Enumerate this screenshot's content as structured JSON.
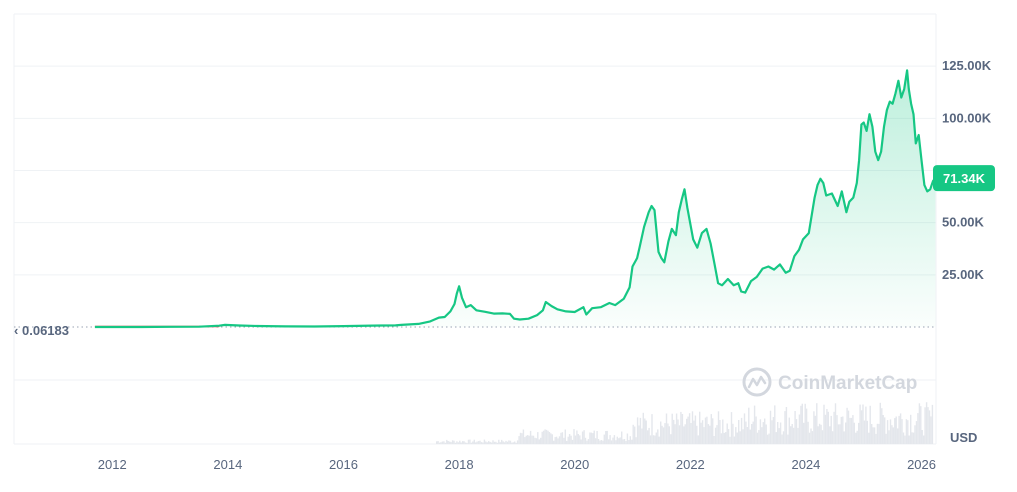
{
  "chart_data": {
    "type": "area",
    "currency_unit": "USD",
    "watermark": "CoinMarketCap",
    "current_value_label": "71.34K",
    "current_value": 71340,
    "baseline_label": "0.06183",
    "baseline_value": 0.06183,
    "y_ticks": [
      {
        "value": 25000,
        "label": "25.00K"
      },
      {
        "value": 50000,
        "label": "50.00K"
      },
      {
        "value": 100000,
        "label": "100.00K"
      },
      {
        "value": 125000,
        "label": "125.00K"
      }
    ],
    "x_ticks": [
      {
        "value": 2012,
        "label": "2012"
      },
      {
        "value": 2014,
        "label": "2014"
      },
      {
        "value": 2016,
        "label": "2016"
      },
      {
        "value": 2018,
        "label": "2018"
      },
      {
        "value": 2020,
        "label": "2020"
      },
      {
        "value": 2022,
        "label": "2022"
      },
      {
        "value": 2024,
        "label": "2024"
      },
      {
        "value": 2026,
        "label": "2026"
      }
    ],
    "xlim": [
      2010.3,
      2026.25
    ],
    "ylim": [
      0,
      150000
    ],
    "grid": true,
    "colors": {
      "line": "#16c784",
      "area": "#16c784",
      "below_baseline": "#ea3943",
      "badge": "#16c784"
    },
    "series": [
      {
        "x": [
          2011.7,
          2012.5,
          2013.0,
          2013.5,
          2013.85,
          2013.95,
          2014.2,
          2014.5,
          2015.0,
          2015.5,
          2016.0,
          2016.5,
          2016.9,
          2017.0,
          2017.3,
          2017.5,
          2017.65,
          2017.75,
          2017.85,
          2017.92,
          2017.96,
          2018.0,
          2018.05,
          2018.12,
          2018.2,
          2018.3,
          2018.45,
          2018.6,
          2018.75,
          2018.88,
          2018.95,
          2019.05,
          2019.2,
          2019.35,
          2019.45,
          2019.5,
          2019.6,
          2019.7,
          2019.85,
          2020.0,
          2020.15,
          2020.2,
          2020.3,
          2020.45,
          2020.6,
          2020.7,
          2020.85,
          2020.95,
          2021.0,
          2021.08,
          2021.12,
          2021.2,
          2021.28,
          2021.33,
          2021.38,
          2021.45,
          2021.5,
          2021.55,
          2021.62,
          2021.68,
          2021.75,
          2021.8,
          2021.85,
          2021.9,
          2021.95,
          2022.05,
          2022.12,
          2022.2,
          2022.28,
          2022.35,
          2022.42,
          2022.48,
          2022.55,
          2022.65,
          2022.75,
          2022.83,
          2022.88,
          2022.95,
          2023.05,
          2023.15,
          2023.25,
          2023.35,
          2023.45,
          2023.55,
          2023.65,
          2023.72,
          2023.8,
          2023.88,
          2023.95,
          2024.05,
          2024.15,
          2024.2,
          2024.25,
          2024.3,
          2024.35,
          2024.45,
          2024.55,
          2024.62,
          2024.7,
          2024.75,
          2024.82,
          2024.88,
          2024.92,
          2024.96,
          2025.0,
          2025.05,
          2025.1,
          2025.15,
          2025.2,
          2025.25,
          2025.3,
          2025.35,
          2025.4,
          2025.45,
          2025.5,
          2025.55,
          2025.6,
          2025.65,
          2025.7,
          2025.75,
          2025.78,
          2025.82,
          2025.86,
          2025.9,
          2025.95,
          2026.0,
          2026.05,
          2026.1,
          2026.15,
          2026.2,
          2026.24
        ],
        "values": [
          5,
          10,
          100,
          120,
          600,
          1000,
          700,
          500,
          300,
          250,
          420,
          650,
          750,
          1000,
          1500,
          2700,
          4500,
          4800,
          7500,
          11000,
          16000,
          19500,
          14000,
          9500,
          10500,
          8000,
          7300,
          6400,
          6500,
          6300,
          4000,
          3600,
          4000,
          5700,
          8000,
          12000,
          10000,
          8500,
          7500,
          7200,
          9500,
          6000,
          9000,
          9500,
          11500,
          10500,
          13500,
          19000,
          29000,
          33000,
          38000,
          48000,
          55000,
          58000,
          56000,
          36000,
          33000,
          31000,
          41000,
          47000,
          44000,
          55000,
          61000,
          66000,
          57000,
          42000,
          38000,
          45000,
          47000,
          40000,
          30000,
          21000,
          20000,
          23000,
          20000,
          21000,
          17000,
          16500,
          22000,
          24000,
          28000,
          29000,
          27500,
          30000,
          26000,
          27000,
          34000,
          37000,
          42000,
          45000,
          62000,
          68000,
          71000,
          69000,
          63000,
          64000,
          58000,
          65000,
          55000,
          60000,
          62000,
          69000,
          80000,
          97000,
          98000,
          94000,
          102000,
          96000,
          84000,
          80000,
          84000,
          96000,
          104000,
          108000,
          107000,
          112000,
          118000,
          110000,
          114000,
          123000,
          114000,
          107000,
          102000,
          88000,
          92000,
          80000,
          68000,
          65000,
          66000,
          70000,
          71340
        ]
      }
    ]
  }
}
